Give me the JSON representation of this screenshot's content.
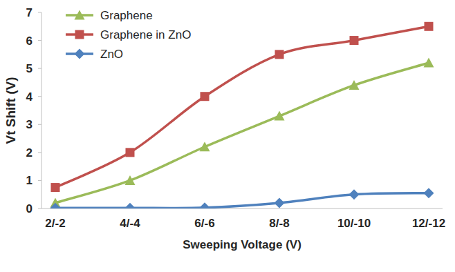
{
  "chart_data": {
    "type": "line",
    "y_label": "Vt Shift (V)",
    "x_label": "Sweeping Voltage (V)",
    "categories": [
      "2/-2",
      "4/-4",
      "6/-6",
      "8/-8",
      "10/-10",
      "12/-12"
    ],
    "series": [
      {
        "name": "Graphene",
        "color": "#9bbb59",
        "marker": "triangle",
        "values": [
          0.2,
          1.0,
          2.2,
          3.3,
          4.4,
          5.2
        ]
      },
      {
        "name": "Graphene in ZnO",
        "color": "#c0504d",
        "marker": "square",
        "values": [
          0.75,
          2.0,
          4.0,
          5.5,
          6.0,
          6.5
        ]
      },
      {
        "name": "ZnO",
        "color": "#4f81bd",
        "marker": "diamond",
        "values": [
          0.02,
          0.02,
          0.03,
          0.2,
          0.5,
          0.55
        ]
      }
    ],
    "ylim": [
      0,
      7
    ],
    "yticks": [
      0,
      1,
      2,
      3,
      4,
      5,
      6,
      7
    ],
    "grid": false,
    "legend": "upper left",
    "line_style": "smooth"
  }
}
